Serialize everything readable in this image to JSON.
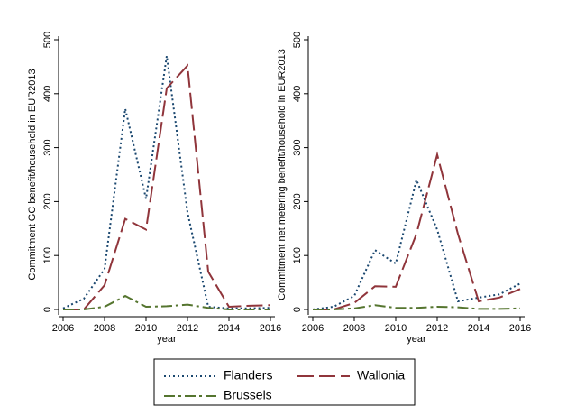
{
  "chart_data": [
    {
      "type": "line",
      "ylabel": "Commitment GC benefit/household in EUR2013",
      "xlabel": "year",
      "x": [
        2006,
        2007,
        2008,
        2009,
        2010,
        2011,
        2012,
        2013,
        2014,
        2015,
        2016
      ],
      "xlim": [
        2006,
        2016
      ],
      "xticks": [
        2006,
        2008,
        2010,
        2012,
        2014,
        2016
      ],
      "ylim": [
        0,
        500
      ],
      "yticks": [
        0,
        100,
        200,
        300,
        400,
        500
      ],
      "series": [
        {
          "name": "Flanders",
          "color": "#1a476f",
          "values": [
            2,
            20,
            75,
            372,
            205,
            470,
            180,
            5,
            2,
            2,
            3
          ]
        },
        {
          "name": "Wallonia",
          "color": "#90353b",
          "values": [
            0,
            0,
            45,
            168,
            148,
            410,
            452,
            70,
            5,
            7,
            8
          ]
        },
        {
          "name": "Brussels",
          "color": "#55752f",
          "values": [
            0,
            0,
            5,
            25,
            5,
            6,
            9,
            3,
            0,
            0,
            0
          ]
        }
      ]
    },
    {
      "type": "line",
      "ylabel": "Commitment net metering benefit/household in EUR2013",
      "xlabel": "year",
      "x": [
        2006,
        2007,
        2008,
        2009,
        2010,
        2011,
        2012,
        2013,
        2014,
        2015,
        2016
      ],
      "xlim": [
        2006,
        2016
      ],
      "xticks": [
        2006,
        2008,
        2010,
        2012,
        2014,
        2016
      ],
      "ylim": [
        0,
        500
      ],
      "yticks": [
        0,
        100,
        200,
        300,
        400,
        500
      ],
      "series": [
        {
          "color": "#1a476f",
          "values": [
            0,
            5,
            25,
            110,
            85,
            240,
            148,
            15,
            22,
            28,
            48
          ]
        },
        {
          "color": "#90353b",
          "values": [
            0,
            0,
            12,
            43,
            42,
            140,
            287,
            140,
            15,
            22,
            38
          ]
        },
        {
          "color": "#55752f",
          "values": [
            0,
            0,
            2,
            8,
            3,
            3,
            5,
            4,
            1,
            1,
            2
          ]
        }
      ]
    }
  ]
}
